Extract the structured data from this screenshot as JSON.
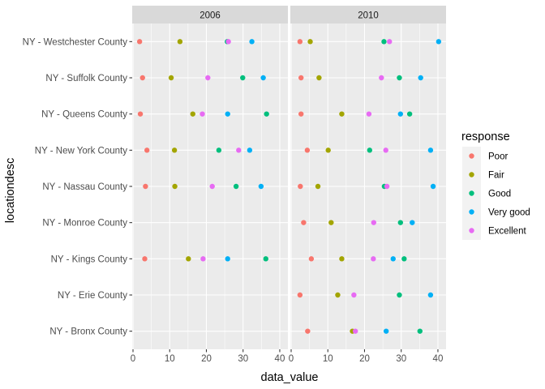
{
  "chart_data": {
    "type": "scatter",
    "xlabel": "data_value",
    "ylabel": "locationdesc",
    "xlim": [
      0,
      42
    ],
    "x_ticks": [
      0,
      10,
      20,
      30,
      40
    ],
    "facets": [
      "2006",
      "2010"
    ],
    "categories": [
      "NY - Bronx County",
      "NY - Erie County",
      "NY - Kings County",
      "NY - Monroe County",
      "NY - Nassau County",
      "NY - New York County",
      "NY - Queens County",
      "NY - Suffolk County",
      "NY - Westchester County"
    ],
    "legend": {
      "title": "response",
      "position": "right",
      "entries": [
        "Poor",
        "Fair",
        "Good",
        "Very good",
        "Excellent"
      ]
    },
    "series": [
      {
        "name": "Poor",
        "color": "#F8766D",
        "values": {
          "2006": [
            null,
            null,
            3.2,
            null,
            3.4,
            3.8,
            2.0,
            2.6,
            1.8
          ],
          "2010": [
            4.5,
            2.4,
            5.5,
            3.4,
            2.5,
            4.4,
            2.7,
            2.7,
            2.4
          ]
        }
      },
      {
        "name": "Fair",
        "color": "#A3A500",
        "values": {
          "2006": [
            null,
            null,
            15.1,
            null,
            11.4,
            11.3,
            16.3,
            10.4,
            12.8
          ],
          "2010": [
            16.7,
            12.7,
            13.8,
            10.9,
            7.3,
            10.1,
            13.8,
            7.6,
            5.2
          ]
        }
      },
      {
        "name": "Good",
        "color": "#00BF7D",
        "values": {
          "2006": [
            null,
            null,
            36.2,
            null,
            28.1,
            23.4,
            36.4,
            29.9,
            25.7
          ],
          "2010": [
            35.1,
            29.5,
            30.8,
            29.8,
            25.4,
            21.4,
            32.3,
            29.5,
            25.3
          ]
        }
      },
      {
        "name": "Very good",
        "color": "#00B0F6",
        "values": {
          "2006": [
            null,
            null,
            25.8,
            null,
            34.9,
            31.8,
            25.8,
            35.5,
            32.4
          ],
          "2010": [
            25.9,
            38.0,
            27.8,
            33.0,
            38.7,
            38.0,
            29.8,
            35.3,
            40.2
          ]
        }
      },
      {
        "name": "Excellent",
        "color": "#E76BF3",
        "values": {
          "2006": [
            null,
            null,
            19.1,
            null,
            21.6,
            28.8,
            18.9,
            20.4,
            26.0
          ],
          "2010": [
            17.5,
            17.1,
            22.4,
            22.5,
            26.1,
            25.8,
            21.2,
            24.6,
            26.8
          ]
        }
      }
    ]
  }
}
